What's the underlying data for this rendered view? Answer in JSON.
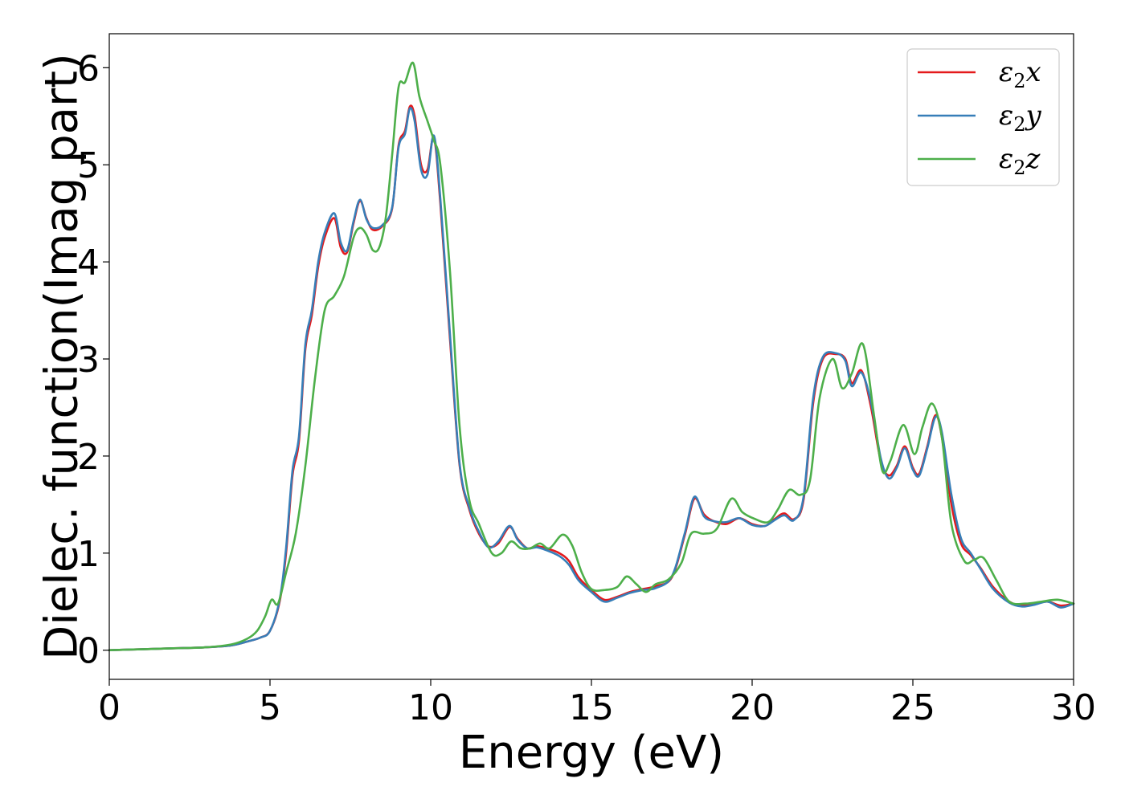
{
  "chart_data": {
    "type": "line",
    "title": "",
    "xlabel": "Energy (eV)",
    "ylabel": "Dielec. function(Imag part)",
    "xlim": [
      0,
      30
    ],
    "ylim": [
      -0.3,
      6.35
    ],
    "xticks": [
      0,
      5,
      10,
      15,
      20,
      25,
      30
    ],
    "yticks": [
      0,
      1,
      2,
      3,
      4,
      5,
      6
    ],
    "grid": false,
    "legend_position": "top-right",
    "series": [
      {
        "name": "ε2x",
        "legend": {
          "base": "ε",
          "sub": "2",
          "suffix": "x"
        },
        "color": "#e41a1c",
        "x": [
          0,
          1,
          2,
          3,
          3.8,
          4.3,
          4.7,
          5.0,
          5.3,
          5.5,
          5.7,
          5.9,
          6.1,
          6.3,
          6.5,
          6.7,
          7.0,
          7.2,
          7.4,
          7.6,
          7.8,
          8.0,
          8.2,
          8.5,
          8.8,
          9.0,
          9.2,
          9.35,
          9.5,
          9.7,
          9.9,
          10.1,
          10.3,
          10.6,
          10.9,
          11.2,
          11.5,
          11.8,
          12.1,
          12.45,
          12.7,
          13.0,
          13.3,
          13.6,
          14.0,
          14.3,
          14.6,
          15.0,
          15.4,
          15.8,
          16.2,
          16.6,
          17.0,
          17.5,
          17.9,
          18.2,
          18.5,
          18.8,
          19.2,
          19.6,
          20.0,
          20.4,
          20.7,
          21.0,
          21.3,
          21.6,
          21.9,
          22.2,
          22.6,
          22.9,
          23.1,
          23.4,
          23.7,
          24.0,
          24.25,
          24.5,
          24.75,
          25.0,
          25.2,
          25.45,
          25.7,
          25.9,
          26.2,
          26.5,
          26.8,
          27.1,
          27.5,
          28.0,
          28.4,
          28.8,
          29.2,
          29.6,
          30.0
        ],
        "y": [
          0,
          0.01,
          0.02,
          0.03,
          0.05,
          0.09,
          0.13,
          0.2,
          0.5,
          1.0,
          1.8,
          2.15,
          3.1,
          3.45,
          3.95,
          4.25,
          4.45,
          4.15,
          4.1,
          4.4,
          4.63,
          4.45,
          4.33,
          4.37,
          4.55,
          5.2,
          5.35,
          5.6,
          5.5,
          5.0,
          4.95,
          5.28,
          4.6,
          3.2,
          1.9,
          1.45,
          1.2,
          1.07,
          1.1,
          1.27,
          1.15,
          1.05,
          1.07,
          1.05,
          1.0,
          0.92,
          0.75,
          0.62,
          0.52,
          0.55,
          0.6,
          0.63,
          0.66,
          0.75,
          1.18,
          1.56,
          1.4,
          1.33,
          1.3,
          1.36,
          1.3,
          1.28,
          1.35,
          1.41,
          1.35,
          1.55,
          2.55,
          3.0,
          3.05,
          3.0,
          2.75,
          2.88,
          2.5,
          1.95,
          1.8,
          1.9,
          2.1,
          1.88,
          1.82,
          2.1,
          2.42,
          2.2,
          1.5,
          1.1,
          0.98,
          0.85,
          0.65,
          0.5,
          0.46,
          0.48,
          0.5,
          0.46,
          0.48
        ]
      },
      {
        "name": "ε2y",
        "legend": {
          "base": "ε",
          "sub": "2",
          "suffix": "y"
        },
        "color": "#377eb8",
        "x": [
          0,
          1,
          2,
          3,
          3.8,
          4.3,
          4.7,
          5.0,
          5.3,
          5.5,
          5.7,
          5.9,
          6.1,
          6.3,
          6.5,
          6.7,
          7.0,
          7.2,
          7.4,
          7.6,
          7.8,
          8.0,
          8.2,
          8.5,
          8.8,
          9.0,
          9.2,
          9.35,
          9.5,
          9.7,
          9.9,
          10.1,
          10.3,
          10.6,
          10.9,
          11.2,
          11.5,
          11.8,
          12.1,
          12.45,
          12.7,
          13.0,
          13.3,
          13.6,
          14.0,
          14.3,
          14.6,
          15.0,
          15.4,
          15.8,
          16.2,
          16.6,
          17.0,
          17.5,
          17.9,
          18.2,
          18.5,
          18.8,
          19.2,
          19.6,
          20.0,
          20.4,
          20.7,
          21.0,
          21.3,
          21.6,
          21.9,
          22.2,
          22.6,
          22.9,
          23.1,
          23.4,
          23.7,
          24.0,
          24.25,
          24.5,
          24.75,
          25.0,
          25.2,
          25.45,
          25.7,
          25.9,
          26.2,
          26.5,
          26.8,
          27.1,
          27.5,
          28.0,
          28.4,
          28.8,
          29.2,
          29.6,
          30.0
        ],
        "y": [
          0,
          0.01,
          0.02,
          0.03,
          0.05,
          0.09,
          0.13,
          0.2,
          0.52,
          1.05,
          1.85,
          2.2,
          3.15,
          3.5,
          4.0,
          4.3,
          4.5,
          4.2,
          4.12,
          4.42,
          4.64,
          4.44,
          4.35,
          4.38,
          4.56,
          5.18,
          5.32,
          5.58,
          5.45,
          4.95,
          4.9,
          5.3,
          4.65,
          3.25,
          1.92,
          1.47,
          1.22,
          1.06,
          1.12,
          1.28,
          1.14,
          1.05,
          1.06,
          1.03,
          0.97,
          0.88,
          0.72,
          0.6,
          0.5,
          0.54,
          0.59,
          0.62,
          0.64,
          0.76,
          1.2,
          1.58,
          1.38,
          1.33,
          1.32,
          1.36,
          1.29,
          1.28,
          1.34,
          1.39,
          1.34,
          1.58,
          2.6,
          3.02,
          3.06,
          2.98,
          2.72,
          2.86,
          2.55,
          1.98,
          1.77,
          1.88,
          2.08,
          1.86,
          1.8,
          2.08,
          2.4,
          2.25,
          1.6,
          1.15,
          1.0,
          0.84,
          0.63,
          0.49,
          0.45,
          0.47,
          0.5,
          0.44,
          0.48
        ]
      },
      {
        "name": "ε2z",
        "legend": {
          "base": "ε",
          "sub": "2",
          "suffix": "z"
        },
        "color": "#4daf4a",
        "x": [
          0,
          1,
          2,
          3,
          3.8,
          4.3,
          4.6,
          4.85,
          5.05,
          5.25,
          5.5,
          5.8,
          6.1,
          6.4,
          6.7,
          7.0,
          7.3,
          7.6,
          7.8,
          8.0,
          8.2,
          8.4,
          8.6,
          8.8,
          9.0,
          9.2,
          9.45,
          9.65,
          9.9,
          10.1,
          10.3,
          10.6,
          10.9,
          11.2,
          11.5,
          11.9,
          12.2,
          12.5,
          12.8,
          13.1,
          13.4,
          13.7,
          14.1,
          14.4,
          14.7,
          15.0,
          15.4,
          15.8,
          16.1,
          16.4,
          16.7,
          17.0,
          17.4,
          17.8,
          18.1,
          18.5,
          18.9,
          19.35,
          19.7,
          20.1,
          20.5,
          20.8,
          21.15,
          21.5,
          21.8,
          22.1,
          22.5,
          22.8,
          23.1,
          23.45,
          23.8,
          24.05,
          24.3,
          24.7,
          25.05,
          25.3,
          25.6,
          25.9,
          26.2,
          26.6,
          26.9,
          27.2,
          27.6,
          28.0,
          28.5,
          29.0,
          29.5,
          30.0
        ],
        "y": [
          0,
          0.01,
          0.02,
          0.03,
          0.06,
          0.12,
          0.2,
          0.35,
          0.52,
          0.48,
          0.8,
          1.2,
          1.9,
          2.8,
          3.5,
          3.65,
          3.85,
          4.25,
          4.35,
          4.28,
          4.12,
          4.15,
          4.45,
          5.1,
          5.8,
          5.85,
          6.05,
          5.7,
          5.45,
          5.25,
          5.0,
          3.9,
          2.3,
          1.55,
          1.3,
          1.0,
          1.0,
          1.12,
          1.05,
          1.05,
          1.1,
          1.05,
          1.19,
          1.08,
          0.8,
          0.63,
          0.62,
          0.65,
          0.76,
          0.68,
          0.6,
          0.68,
          0.73,
          0.9,
          1.2,
          1.2,
          1.25,
          1.56,
          1.42,
          1.35,
          1.32,
          1.45,
          1.65,
          1.6,
          1.75,
          2.6,
          3.0,
          2.7,
          2.85,
          3.15,
          2.4,
          1.85,
          1.95,
          2.32,
          2.02,
          2.3,
          2.54,
          2.2,
          1.3,
          0.92,
          0.93,
          0.95,
          0.72,
          0.5,
          0.48,
          0.5,
          0.52,
          0.48
        ]
      }
    ]
  }
}
